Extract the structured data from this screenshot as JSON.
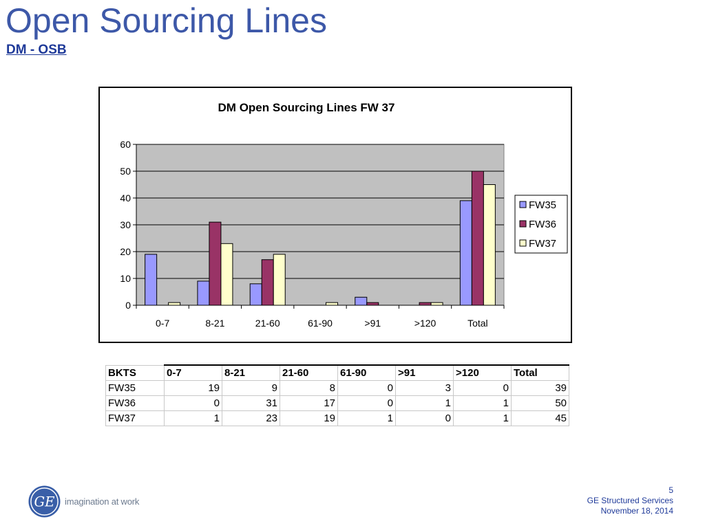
{
  "slide": {
    "title": "Open Sourcing Lines",
    "subtitle": "DM - OSB"
  },
  "chart_data": {
    "type": "bar",
    "title": "DM Open Sourcing Lines FW 37",
    "categories": [
      "0-7",
      "8-21",
      "21-60",
      "61-90",
      ">91",
      ">120",
      "Total"
    ],
    "series": [
      {
        "name": "FW35",
        "values": [
          19,
          9,
          8,
          0,
          3,
          0,
          39
        ],
        "color": "#9999ff"
      },
      {
        "name": "FW36",
        "values": [
          0,
          31,
          17,
          0,
          1,
          1,
          50
        ],
        "color": "#993366"
      },
      {
        "name": "FW37",
        "values": [
          1,
          23,
          19,
          1,
          0,
          1,
          45
        ],
        "color": "#ffffcc"
      }
    ],
    "ylim": [
      0,
      60
    ],
    "yticks": [
      0,
      10,
      20,
      30,
      40,
      50,
      60
    ],
    "grid": true,
    "plot_background": "#c0c0c0",
    "legend_position": "right"
  },
  "table": {
    "header_label": "BKTS",
    "columns": [
      "0-7",
      "8-21",
      "21-60",
      "61-90",
      ">91",
      ">120",
      "Total"
    ],
    "rows": [
      {
        "label": "FW35",
        "values": [
          "19",
          "9",
          "8",
          "0",
          "3",
          "0",
          "39"
        ]
      },
      {
        "label": "FW36",
        "values": [
          "0",
          "31",
          "17",
          "0",
          "1",
          "1",
          "50"
        ]
      },
      {
        "label": "FW37",
        "values": [
          "1",
          "23",
          "19",
          "1",
          "0",
          "1",
          "45"
        ]
      }
    ]
  },
  "branding": {
    "logo_text": "GE",
    "tagline": "imagination at work",
    "logo_color": "#3a5fa8"
  },
  "footer": {
    "page_number": "5",
    "company": "GE Structured Services",
    "date": "November 18, 2014"
  }
}
